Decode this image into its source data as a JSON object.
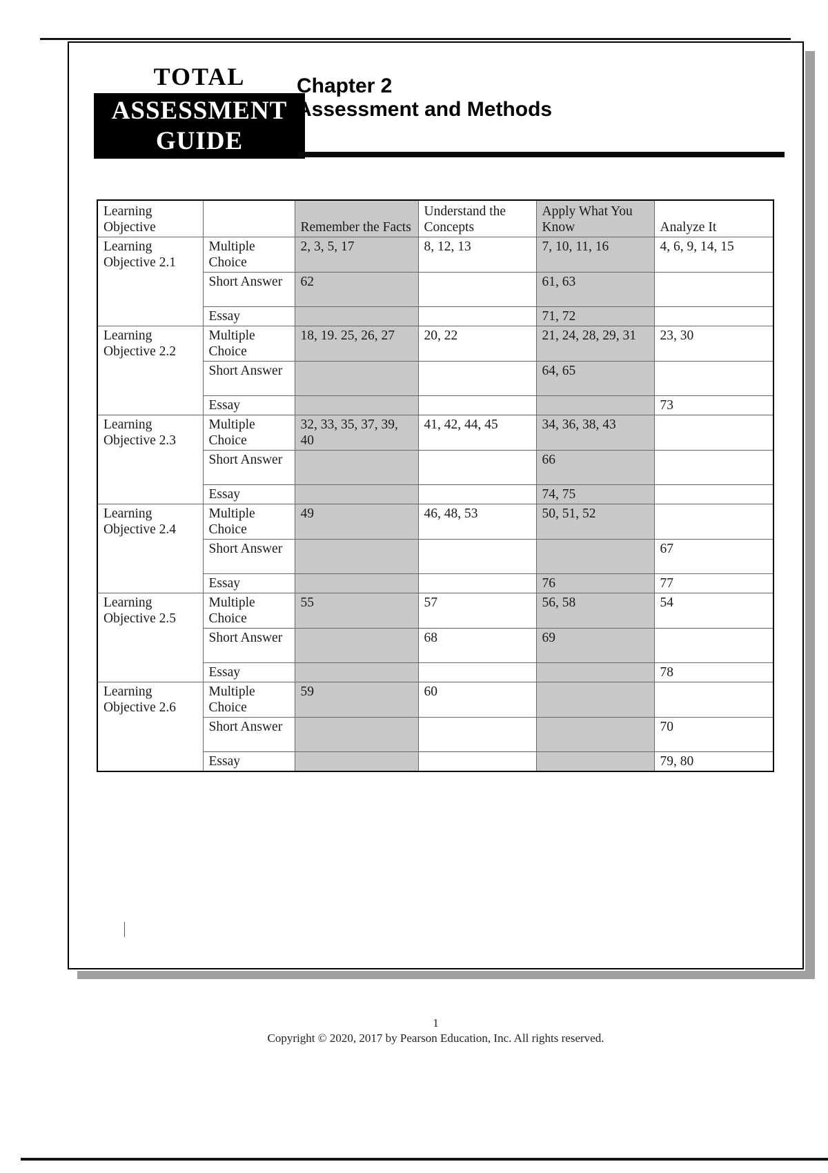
{
  "badge": {
    "line1": "TOTAL",
    "line2": "ASSESSMENT",
    "line3": "GUIDE"
  },
  "chapter": {
    "title": "Chapter 2",
    "subtitle": "Assessment and Methods"
  },
  "footer": {
    "page_number": "1",
    "copyright": "Copyright © 2020, 2017 by Pearson Education, Inc. All rights reserved."
  },
  "colors": {
    "shaded_column": "#c8c8c8",
    "page_shadow": "#a0a0a0",
    "badge_bg": "#000000"
  },
  "table": {
    "headers": {
      "objective": "Learning Objective",
      "type": "",
      "remember": "Remember the Facts",
      "understand": "Understand the Concepts",
      "apply": "Apply What You Know",
      "analyze": "Analyze It"
    },
    "groups": [
      {
        "objective": "Learning Objective 2.1",
        "rows": [
          {
            "type": "Multiple Choice",
            "remember": "2, 3, 5, 17",
            "understand": "8, 12, 13",
            "apply": "7, 10, 11, 16",
            "analyze": "4, 6, 9, 14, 15"
          },
          {
            "type": "Short Answer",
            "remember": "62",
            "understand": "",
            "apply": "61, 63",
            "analyze": ""
          },
          {
            "type": "Essay",
            "remember": "",
            "understand": "",
            "apply": "71, 72",
            "analyze": ""
          }
        ]
      },
      {
        "objective": "Learning Objective 2.2",
        "rows": [
          {
            "type": "Multiple Choice",
            "remember": "18, 19. 25, 26, 27",
            "understand": "20, 22",
            "apply": "21, 24, 28, 29, 31",
            "analyze": "23, 30"
          },
          {
            "type": "Short Answer",
            "remember": "",
            "understand": "",
            "apply": "64, 65",
            "analyze": ""
          },
          {
            "type": "Essay",
            "remember": "",
            "understand": "",
            "apply": "",
            "analyze": "73"
          }
        ]
      },
      {
        "objective": "Learning Objective 2.3",
        "rows": [
          {
            "type": "Multiple Choice",
            "remember": "32, 33, 35, 37, 39, 40",
            "understand": "41, 42, 44, 45",
            "apply": "34, 36, 38, 43",
            "analyze": ""
          },
          {
            "type": "Short Answer",
            "remember": "",
            "understand": "",
            "apply": "66",
            "analyze": ""
          },
          {
            "type": "Essay",
            "remember": "",
            "understand": "",
            "apply": "74, 75",
            "analyze": ""
          }
        ]
      },
      {
        "objective": "Learning Objective 2.4",
        "rows": [
          {
            "type": "Multiple Choice",
            "remember": "49",
            "understand": "46, 48, 53",
            "apply": "50, 51, 52",
            "analyze": ""
          },
          {
            "type": "Short Answer",
            "remember": "",
            "understand": "",
            "apply": "",
            "analyze": "67"
          },
          {
            "type": "Essay",
            "remember": "",
            "understand": "",
            "apply": "76",
            "analyze": "77"
          }
        ]
      },
      {
        "objective": "Learning Objective 2.5",
        "rows": [
          {
            "type": "Multiple Choice",
            "remember": "55",
            "understand": "57",
            "apply": "56, 58",
            "analyze": "54"
          },
          {
            "type": "Short Answer",
            "remember": "",
            "understand": "68",
            "apply": "69",
            "analyze": ""
          },
          {
            "type": "Essay",
            "remember": "",
            "understand": "",
            "apply": "",
            "analyze": "78"
          }
        ]
      },
      {
        "objective": "Learning Objective 2.6",
        "rows": [
          {
            "type": "Multiple Choice",
            "remember": "59",
            "understand": "60",
            "apply": "",
            "analyze": ""
          },
          {
            "type": "Short Answer",
            "remember": "",
            "understand": "",
            "apply": "",
            "analyze": "70"
          },
          {
            "type": "Essay",
            "remember": "",
            "understand": "",
            "apply": "",
            "analyze": "79, 80"
          }
        ]
      }
    ]
  }
}
